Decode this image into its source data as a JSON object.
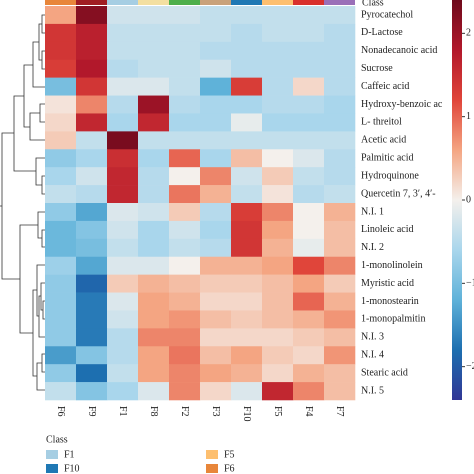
{
  "chart_data": {
    "type": "heatmap",
    "header": "Class",
    "columns": [
      "F6",
      "F9",
      "F1",
      "F8",
      "F2",
      "F3",
      "F10",
      "F5",
      "F4",
      "F7"
    ],
    "column_colors": [
      "#e8863a",
      "#a01d22",
      "#a6cee3",
      "#f3dfa0",
      "#4daf4a",
      "#c9a27a",
      "#1f78b4",
      "#fdbf6f",
      "#d9302c",
      "#9a6fb8"
    ],
    "rows": [
      "Pyrocatechol",
      "D-Lactose",
      "Nonadecanoic acid",
      "Sucrose",
      "Caffeic acid",
      "Hydroxy-benzoic ac",
      "L- threitol",
      "Acetic acid",
      "Palmitic acid",
      "Hydroquinone",
      "Quercetin 7, 3′, 4′-",
      "N.I. 1",
      "Linoleic acid",
      "N.I. 2",
      "1-monolinolein",
      "Myristic acid",
      "1-monostearin",
      "1-monopalmitin",
      "N.I. 3",
      "N.I. 4",
      "Stearic acid",
      "N.I. 5"
    ],
    "values": [
      [
        0.6,
        2.2,
        -0.3,
        -0.3,
        -0.3,
        -0.4,
        -0.4,
        -0.4,
        -0.4,
        -0.4
      ],
      [
        1.4,
        1.7,
        -0.4,
        -0.4,
        -0.4,
        -0.4,
        -0.5,
        -0.4,
        -0.4,
        -0.5
      ],
      [
        1.4,
        1.7,
        -0.4,
        -0.4,
        -0.4,
        -0.5,
        -0.5,
        -0.5,
        -0.5,
        -0.5
      ],
      [
        1.3,
        1.8,
        -0.5,
        -0.4,
        -0.4,
        -0.3,
        -0.5,
        -0.5,
        -0.5,
        -0.5
      ],
      [
        -1.0,
        1.4,
        -0.2,
        -0.2,
        -0.4,
        -1.2,
        1.3,
        -0.5,
        0.2,
        -0.5
      ],
      [
        0.1,
        0.8,
        -0.5,
        2.0,
        -0.5,
        -0.6,
        -0.6,
        -0.5,
        -0.5,
        -0.6
      ],
      [
        0.2,
        1.6,
        -0.6,
        1.6,
        -0.6,
        -0.6,
        -0.1,
        -0.6,
        -0.6,
        -0.6
      ],
      [
        0.3,
        -0.4,
        2.3,
        -0.4,
        -0.4,
        -0.4,
        -0.4,
        -0.4,
        -0.4,
        -0.4
      ],
      [
        -0.8,
        -0.6,
        1.5,
        -0.6,
        1.0,
        -0.6,
        0.4,
        0.0,
        -0.2,
        -0.5
      ],
      [
        -0.6,
        -0.3,
        1.6,
        -0.5,
        0.0,
        0.8,
        -0.3,
        0.3,
        -0.4,
        -0.5
      ],
      [
        -0.4,
        -0.5,
        1.6,
        -0.5,
        0.9,
        0.5,
        -0.4,
        0.1,
        -0.5,
        -0.4
      ],
      [
        -0.8,
        -1.3,
        -0.2,
        -0.3,
        0.3,
        -0.5,
        1.3,
        0.8,
        0.0,
        0.5
      ],
      [
        -1.1,
        -0.9,
        -0.3,
        -0.6,
        -0.3,
        -0.6,
        1.4,
        0.6,
        0.0,
        0.4
      ],
      [
        -1.1,
        -1.0,
        -0.4,
        -0.6,
        -0.4,
        -0.5,
        1.4,
        0.5,
        -0.1,
        0.4
      ],
      [
        -0.7,
        -1.3,
        -0.2,
        -0.2,
        0.0,
        0.5,
        0.5,
        0.6,
        1.2,
        0.8
      ],
      [
        -0.8,
        -1.9,
        0.3,
        0.5,
        0.4,
        0.3,
        0.3,
        0.4,
        0.6,
        0.3
      ],
      [
        -0.8,
        -1.7,
        -0.2,
        0.6,
        0.5,
        0.2,
        0.2,
        0.4,
        1.0,
        0.5
      ],
      [
        -0.8,
        -1.7,
        -0.3,
        0.6,
        0.7,
        0.4,
        0.3,
        0.4,
        0.5,
        0.7
      ],
      [
        -0.8,
        -1.7,
        -0.5,
        0.8,
        0.8,
        0.2,
        0.2,
        0.2,
        0.3,
        0.4
      ],
      [
        -1.4,
        -0.9,
        -0.5,
        0.6,
        0.9,
        0.4,
        0.6,
        0.3,
        0.2,
        0.7
      ],
      [
        -0.8,
        -1.8,
        -0.4,
        0.6,
        0.8,
        0.6,
        0.5,
        0.2,
        0.5,
        0.4
      ],
      [
        -0.4,
        -0.9,
        -0.6,
        -0.2,
        0.8,
        0.2,
        -0.2,
        1.6,
        0.8,
        0.4
      ]
    ],
    "clim": [
      -2.4,
      2.4
    ],
    "colors": [
      "#313695",
      "#1d6fb0",
      "#5fb2d9",
      "#a9d6ec",
      "#f4f0ec",
      "#f4a582",
      "#e0453a",
      "#b2182b",
      "#6e0a1c"
    ],
    "cticks": [
      {
        "value": -2,
        "label": "−2"
      },
      {
        "value": -1,
        "label": "−1"
      },
      0,
      1,
      2
    ],
    "legend": {
      "title": "Class",
      "items": [
        {
          "name": "F1",
          "color": "#a6cee3"
        },
        {
          "name": "F5",
          "color": "#fdbf6f"
        },
        {
          "name": "F10",
          "color": "#1f78b4"
        },
        {
          "name": "F6",
          "color": "#e8863a"
        }
      ]
    }
  }
}
